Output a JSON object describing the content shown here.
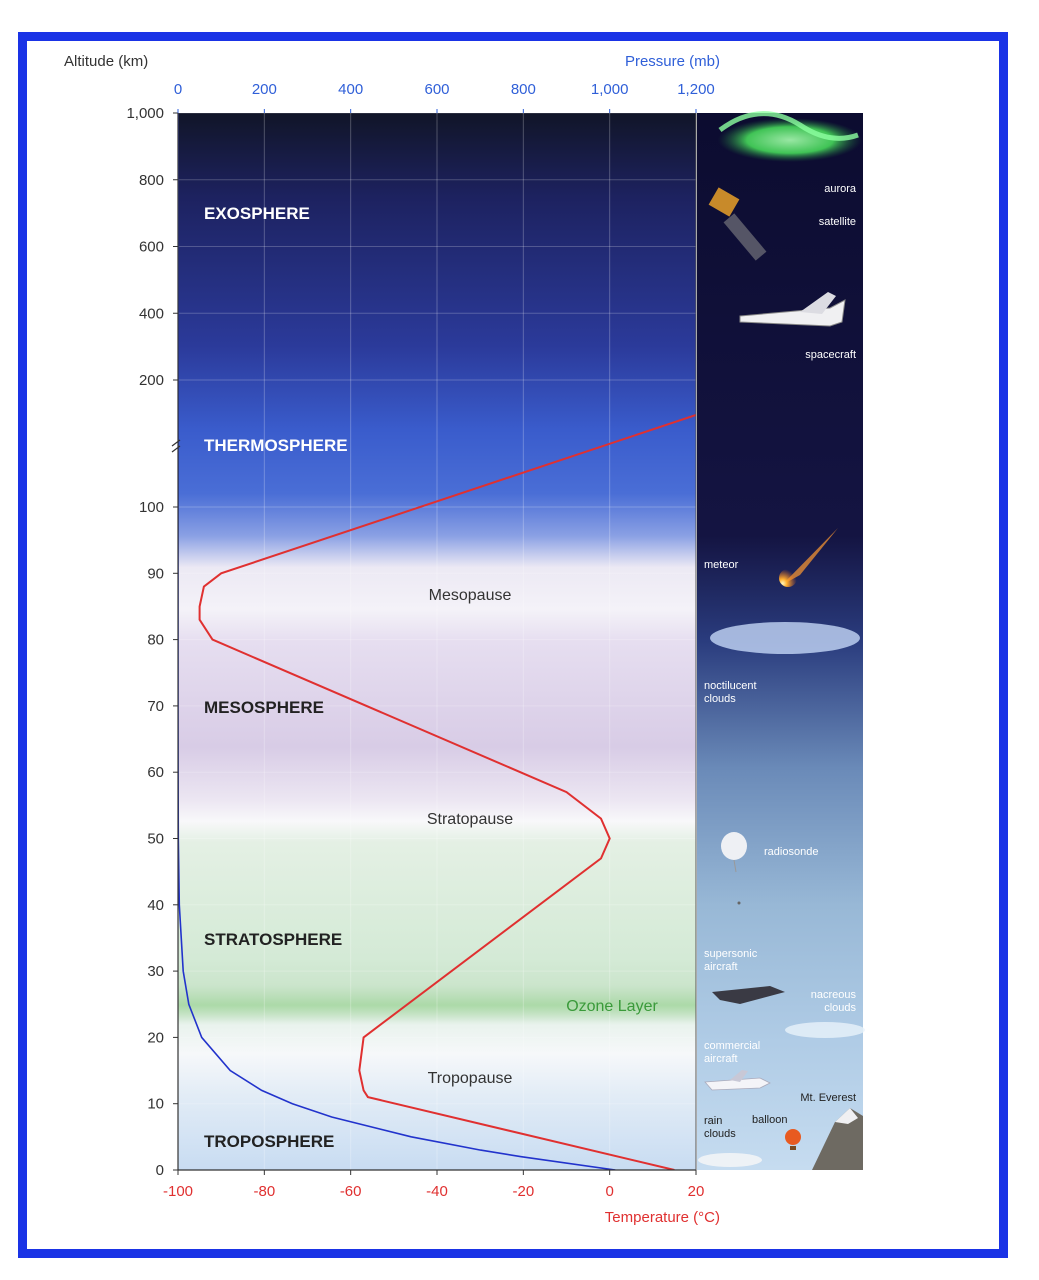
{
  "chart_data": {
    "type": "line",
    "title": "",
    "left_axis": {
      "label": "Altitude (km)",
      "ticks_lower": [
        "0",
        "10",
        "20",
        "30",
        "40",
        "50",
        "60",
        "70",
        "80",
        "90",
        "100"
      ],
      "ticks_upper": [
        "200",
        "400",
        "600",
        "800",
        "1,000"
      ],
      "lower_range_km": [
        0,
        100
      ],
      "upper_range_km": [
        200,
        1000
      ]
    },
    "top_axis": {
      "label": "Pressure (mb)",
      "ticks": [
        "0",
        "200",
        "400",
        "600",
        "800",
        "1,000",
        "1,200"
      ],
      "range": [
        0,
        1200
      ],
      "color": "#2f5fd8"
    },
    "bottom_axis": {
      "label": "Temperature (°C)",
      "ticks": [
        "-100",
        "-80",
        "-60",
        "-40",
        "-20",
        "0",
        "20"
      ],
      "range": [
        -100,
        20
      ],
      "color": "#e03030"
    },
    "series": [
      {
        "name": "",
        "axis": "temperature",
        "color": "#e03030",
        "points": [
          [
            15,
            0
          ],
          [
            -56,
            11
          ],
          [
            -57,
            12
          ],
          [
            -58,
            15
          ],
          [
            -57,
            20
          ],
          [
            -2,
            47
          ],
          [
            0,
            50
          ],
          [
            -2,
            53
          ],
          [
            -10,
            57
          ],
          [
            -92,
            80
          ],
          [
            -95,
            83
          ],
          [
            -95,
            85
          ],
          [
            -94,
            88
          ],
          [
            -90,
            90
          ],
          [
            20,
            141
          ]
        ]
      },
      {
        "name": "",
        "axis": "pressure",
        "color": "#2233cc",
        "points": [
          [
            1013,
            0
          ],
          [
            795,
            2
          ],
          [
            701,
            3
          ],
          [
            540,
            5
          ],
          [
            356,
            8
          ],
          [
            265,
            10
          ],
          [
            194,
            12
          ],
          [
            121,
            15
          ],
          [
            55,
            20
          ],
          [
            25,
            25
          ],
          [
            12,
            30
          ],
          [
            3,
            40
          ],
          [
            0.8,
            50
          ],
          [
            0.2,
            60
          ],
          [
            0.05,
            70
          ],
          [
            0,
            100
          ],
          [
            0,
            141
          ],
          [
            0,
            200
          ],
          [
            0,
            1000
          ]
        ]
      }
    ],
    "layers": [
      {
        "name": "TROPOSPHERE",
        "color": "#222222"
      },
      {
        "name": "STRATOSPHERE",
        "color": "#222222"
      },
      {
        "name": "MESOSPHERE",
        "color": "#222222"
      },
      {
        "name": "THERMOSPHERE",
        "color": "#ffffff"
      },
      {
        "name": "EXOSPHERE",
        "color": "#ffffff"
      }
    ],
    "annotations": {
      "tropopause": "Tropopause",
      "stratopause": "Stratopause",
      "mesopause": "Mesopause",
      "ozone": "Ozone Layer"
    },
    "objects": {
      "aurora": "aurora",
      "satellite": "satellite",
      "spacecraft": "spacecraft",
      "meteor": "meteor",
      "noctilucent_1": "noctilucent",
      "noctilucent_2": "clouds",
      "radiosonde": "radiosonde",
      "supersonic_1": "supersonic",
      "supersonic_2": "aircraft",
      "nacreous_1": "nacreous",
      "nacreous_2": "clouds",
      "commercial_1": "commercial",
      "commercial_2": "aircraft",
      "everest": "Mt. Everest",
      "rain_1": "rain",
      "rain_2": "clouds",
      "balloon": "balloon"
    }
  }
}
